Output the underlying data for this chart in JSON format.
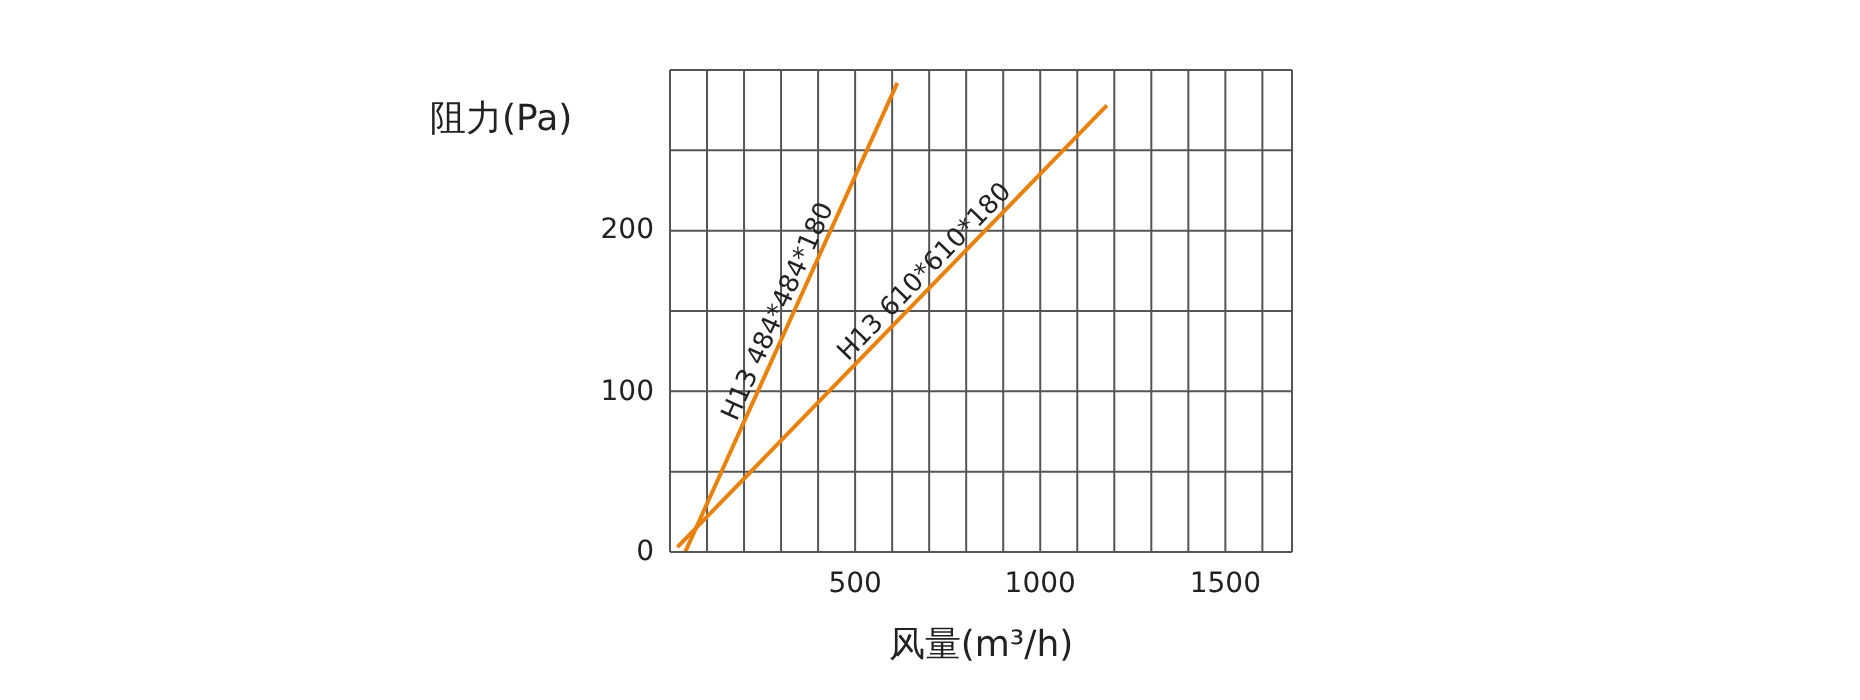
{
  "chart_data": {
    "type": "line",
    "xlabel": "风量(m³/h)",
    "ylabel": "阻力(Pa)",
    "xlim": [
      0,
      1680
    ],
    "ylim": [
      0,
      300
    ],
    "xticks": [
      {
        "value": 0,
        "label": null
      },
      {
        "value": 100,
        "label": null
      },
      {
        "value": 200,
        "label": null
      },
      {
        "value": 300,
        "label": null
      },
      {
        "value": 400,
        "label": null
      },
      500,
      {
        "value": 600,
        "label": null
      },
      {
        "value": 700,
        "label": null
      },
      {
        "value": 800,
        "label": null
      },
      {
        "value": 900,
        "label": null
      },
      1000,
      {
        "value": 1100,
        "label": null
      },
      {
        "value": 1200,
        "label": null
      },
      {
        "value": 1300,
        "label": null
      },
      {
        "value": 1400,
        "label": null
      },
      1500,
      {
        "value": 1600,
        "label": null
      }
    ],
    "yticks": [
      0,
      {
        "value": 50,
        "label": null
      },
      100,
      {
        "value": 150,
        "label": null
      },
      200,
      {
        "value": 250,
        "label": null
      }
    ],
    "grid": true,
    "marker": "none",
    "line_style": "solid",
    "series": [
      {
        "name": "H13 484*484*180",
        "color": "#e8820c",
        "x": [
          41,
          614
        ],
        "values": [
          0,
          292
        ]
      },
      {
        "name": "H13 610*610*180",
        "color": "#e8820c",
        "x": [
          20,
          1180
        ],
        "values": [
          3,
          278
        ]
      }
    ]
  }
}
